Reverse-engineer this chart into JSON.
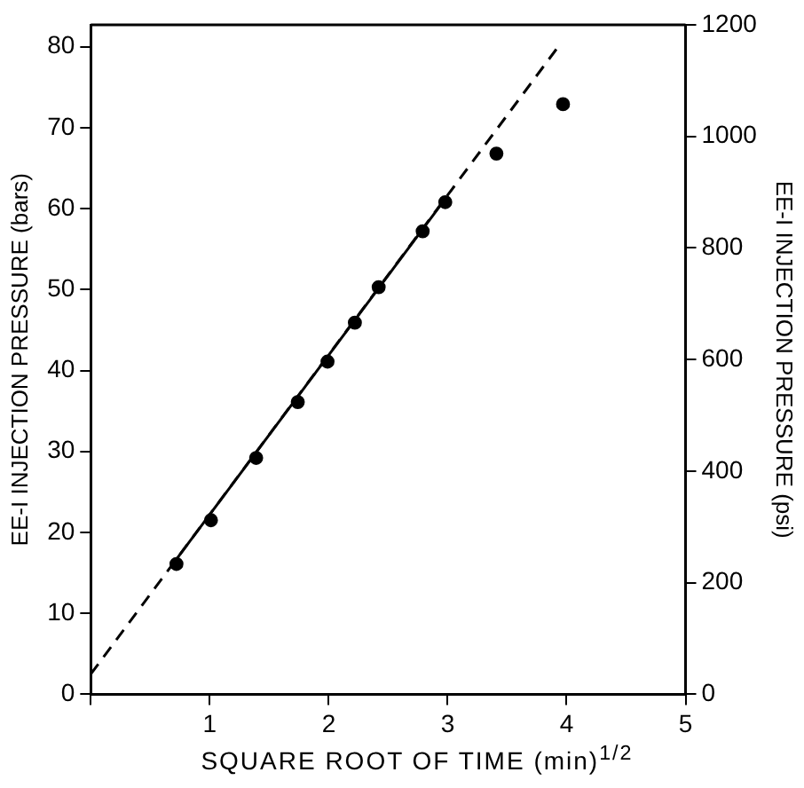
{
  "chart_data": {
    "type": "scatter",
    "xlabel": "SQUARE ROOT OF TIME (min)$^{1/2}$",
    "ylabel": "EE-I INJECTION PRESSURE (bars)",
    "y2label": "EE-I INJECTION PRESSURE (psi)",
    "xlim": [
      0,
      5
    ],
    "xticks": [
      {
        "value": 0,
        "label": null
      },
      1,
      2,
      3,
      4,
      5
    ],
    "ylim": [
      0,
      82.7
    ],
    "yticks": [
      0,
      10,
      20,
      30,
      40,
      50,
      60,
      70,
      80
    ],
    "y2lim": [
      0,
      1200
    ],
    "y2ticks": [
      0,
      200,
      400,
      600,
      800,
      1000,
      1200
    ],
    "grid": false,
    "legend": false,
    "series": [
      {
        "type": "line",
        "color": "#000000",
        "marker": "none",
        "line_style": "dashed",
        "x": [
          0,
          3.95
        ],
        "values": [
          2.5,
          80.4
        ]
      },
      {
        "type": "line",
        "color": "#000000",
        "marker": "none",
        "line_style": "solid",
        "x": [
          0.72,
          2.98
        ],
        "values": [
          16.7,
          61.2
        ]
      },
      {
        "color": "#000000",
        "marker": "circle",
        "x": [
          0.72,
          1.01,
          1.39,
          1.74,
          1.99,
          2.22,
          2.42,
          2.79,
          2.98,
          3.41,
          3.97
        ],
        "values": [
          16.1,
          21.5,
          29.2,
          36.1,
          41.1,
          45.9,
          50.3,
          57.2,
          60.8,
          66.8,
          72.9
        ]
      }
    ]
  }
}
